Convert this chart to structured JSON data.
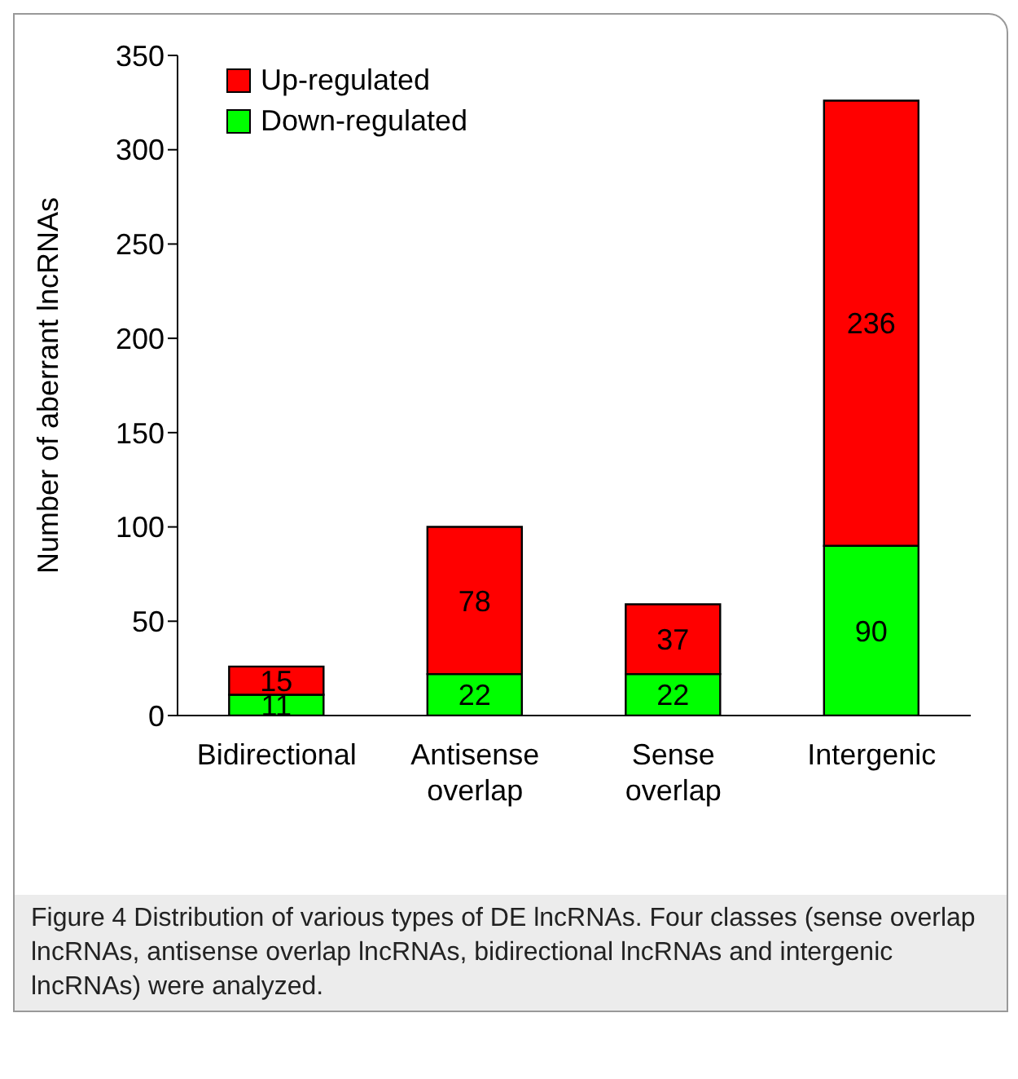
{
  "chart_data": {
    "type": "bar",
    "stacked": true,
    "ylabel": "Number of aberrant lncRNAs",
    "categories": [
      "Bidirectional",
      "Antisense overlap",
      "Sense overlap",
      "Intergenic"
    ],
    "series": [
      {
        "name": "Down-regulated",
        "color": "#00ff00",
        "values": [
          11,
          22,
          22,
          90
        ]
      },
      {
        "name": "Up-regulated",
        "color": "#ff0000",
        "values": [
          15,
          78,
          37,
          236
        ]
      }
    ],
    "ylim": [
      0,
      350
    ],
    "yticks": [
      0,
      50,
      100,
      150,
      200,
      250,
      300,
      350
    ],
    "grid": false,
    "legend": "top left",
    "data_labels": true,
    "annotations": [
      "Figure 4  Distribution of various types of DE lncRNAs. Four classes (sense overlap lncRNAs, antisense overlap lncRNAs, bidirectional lncRNAs and intergenic lncRNAs) were analyzed."
    ]
  }
}
